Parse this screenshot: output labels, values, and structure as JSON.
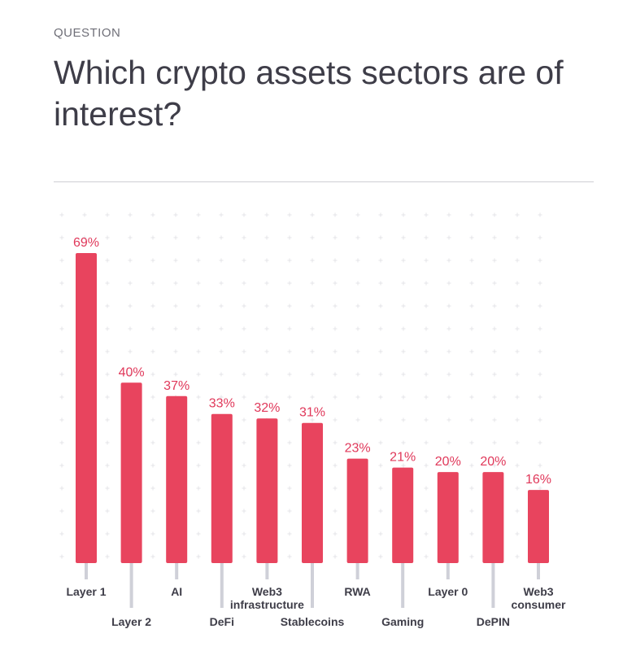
{
  "header": {
    "eyebrow": "QUESTION",
    "title": "Which crypto assets sectors are of interest?"
  },
  "colors": {
    "bar": "#e8445e",
    "value_label": "#e0385a",
    "category_label": "#3e3d48",
    "leader": "#cfd0d8",
    "grid": "#e4e4e8"
  },
  "chart_data": {
    "type": "bar",
    "unit": "%",
    "categories": [
      "Layer 1",
      "Layer 2",
      "AI",
      "DeFi",
      "Web3 infrastructure",
      "Stablecoins",
      "RWA",
      "Gaming",
      "Layer 0",
      "DePIN",
      "Web3 consumer"
    ],
    "category_lines": [
      [
        "Layer 1"
      ],
      [
        "Layer 2"
      ],
      [
        "AI"
      ],
      [
        "DeFi"
      ],
      [
        "Web3",
        "infrastructure"
      ],
      [
        "Stablecoins"
      ],
      [
        "RWA"
      ],
      [
        "Gaming"
      ],
      [
        "Layer 0"
      ],
      [
        "DePIN"
      ],
      [
        "Web3",
        "consumer"
      ]
    ],
    "values": [
      69,
      40,
      37,
      33,
      32,
      31,
      23,
      21,
      20,
      20,
      16
    ],
    "value_labels": [
      "69%",
      "40%",
      "37%",
      "33%",
      "32%",
      "31%",
      "23%",
      "21%",
      "20%",
      "20%",
      "16%"
    ],
    "label_row": [
      "upper",
      "lower",
      "upper",
      "lower",
      "upper",
      "lower",
      "upper",
      "lower",
      "upper",
      "lower",
      "upper"
    ],
    "ylim": [
      0,
      100
    ],
    "grid": true,
    "legend": "none"
  }
}
